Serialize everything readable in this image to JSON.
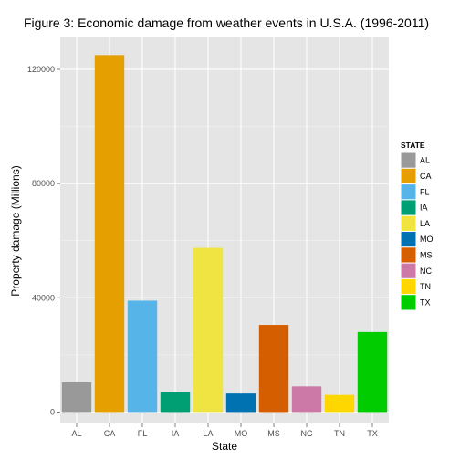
{
  "chart_data": {
    "type": "bar",
    "title": "Figure 3: Economic damage from weather events in U.S.A. (1996-2011)",
    "xlabel": "State",
    "ylabel": "Property damage (Millions)",
    "ylim": [
      -4000,
      131500
    ],
    "yticks": [
      0,
      40000,
      80000,
      120000
    ],
    "categories": [
      "AL",
      "CA",
      "FL",
      "IA",
      "LA",
      "MO",
      "MS",
      "NC",
      "TN",
      "TX"
    ],
    "values": [
      10500,
      125000,
      39000,
      7000,
      57500,
      6500,
      30500,
      9000,
      6000,
      28000
    ],
    "colors": [
      "#999999",
      "#E69F00",
      "#56B4E9",
      "#009E73",
      "#F0E442",
      "#0072B2",
      "#D55E00",
      "#CC79A7",
      "#FFD700",
      "#00CC00"
    ],
    "legend": {
      "title": "STATE",
      "placement": "right",
      "entries": [
        "AL",
        "CA",
        "FL",
        "IA",
        "LA",
        "MO",
        "MS",
        "NC",
        "TN",
        "TX"
      ]
    },
    "panel_background": "#E5E5E5",
    "grid": true
  }
}
